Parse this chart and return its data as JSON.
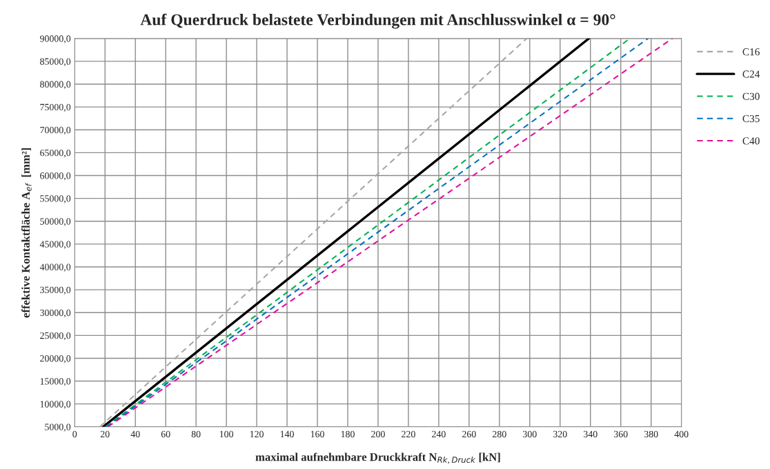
{
  "chart_data": {
    "type": "line",
    "title": "Auf Querdruck belastete Verbindungen mit Anschlusswinkel α = 90°",
    "xlabel": "maximal aufnehmbare Druckkraft N$_{Rk,Druck}$ [kN]",
    "ylabel": "effektive Kontaktfläche A$_{ef}$  [mm²]",
    "series": [
      {
        "name": "C16",
        "color": "#a6a6a6",
        "line_style": "dashed",
        "x": [
          16.6,
          298
        ],
        "values": [
          5000,
          90000
        ]
      },
      {
        "name": "C24",
        "color": "#000000",
        "line_style": "solid",
        "x": [
          18.8,
          339
        ],
        "values": [
          5000,
          90000
        ]
      },
      {
        "name": "C30",
        "color": "#00b050",
        "line_style": "dashed",
        "x": [
          20.3,
          366
        ],
        "values": [
          5000,
          90000
        ]
      },
      {
        "name": "C35",
        "color": "#0070c0",
        "line_style": "dashed",
        "x": [
          21,
          378
        ],
        "values": [
          5000,
          90000
        ]
      },
      {
        "name": "C40",
        "color": "#e0109a",
        "line_style": "dashed",
        "x": [
          21.9,
          394
        ],
        "values": [
          5000,
          90000
        ]
      }
    ],
    "xlim": [
      0,
      400
    ],
    "xticks": [
      0,
      20,
      40,
      60,
      80,
      100,
      120,
      140,
      160,
      180,
      200,
      220,
      240,
      260,
      280,
      300,
      320,
      340,
      360,
      380,
      400
    ],
    "ylim": [
      5000,
      90000
    ],
    "yticks": [
      {
        "value": 5000,
        "label": "5000,0"
      },
      {
        "value": 10000,
        "label": "10000,0"
      },
      {
        "value": 15000,
        "label": "15000,0"
      },
      {
        "value": 20000,
        "label": "20000,0"
      },
      {
        "value": 25000,
        "label": "25000,0"
      },
      {
        "value": 30000,
        "label": "30000,0"
      },
      {
        "value": 35000,
        "label": "35000,0"
      },
      {
        "value": 40000,
        "label": "40000,0"
      },
      {
        "value": 45000,
        "label": "45000,0"
      },
      {
        "value": 50000,
        "label": "50000,0"
      },
      {
        "value": 55000,
        "label": "55000,0"
      },
      {
        "value": 60000,
        "label": "60000,0"
      },
      {
        "value": 65000,
        "label": "65000,0"
      },
      {
        "value": 70000,
        "label": "70000,0"
      },
      {
        "value": 75000,
        "label": "75000,0"
      },
      {
        "value": 80000,
        "label": "80000,0"
      },
      {
        "value": 85000,
        "label": "85000,0"
      },
      {
        "value": 90000,
        "label": "90000,0"
      }
    ],
    "grid": true,
    "legend": "right",
    "marker": "none"
  }
}
